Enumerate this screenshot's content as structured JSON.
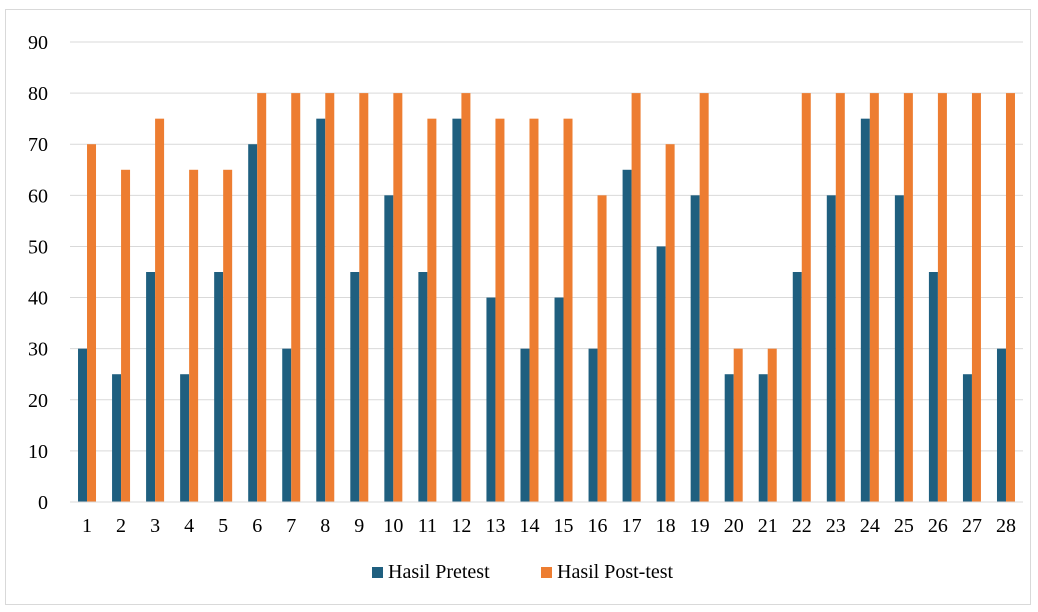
{
  "chart_data": {
    "type": "bar",
    "title": "",
    "xlabel": "",
    "ylabel": "",
    "ylim": [
      0,
      90
    ],
    "ytick_step": 10,
    "grid": true,
    "legend_position": "bottom",
    "categories": [
      "1",
      "2",
      "3",
      "4",
      "5",
      "6",
      "7",
      "8",
      "9",
      "10",
      "11",
      "12",
      "13",
      "14",
      "15",
      "16",
      "17",
      "18",
      "19",
      "20",
      "21",
      "22",
      "23",
      "24",
      "25",
      "26",
      "27",
      "28"
    ],
    "series": [
      {
        "name": "Hasil Pretest",
        "color": "#1f5f7f",
        "values": [
          30,
          25,
          45,
          25,
          45,
          70,
          30,
          75,
          45,
          60,
          45,
          75,
          40,
          30,
          40,
          30,
          65,
          50,
          60,
          25,
          25,
          45,
          60,
          75,
          60,
          45,
          25,
          30
        ]
      },
      {
        "name": "Hasil Post-test",
        "color": "#ed7d31",
        "values": [
          70,
          65,
          75,
          65,
          65,
          80,
          80,
          80,
          80,
          80,
          75,
          80,
          75,
          75,
          75,
          60,
          80,
          70,
          80,
          30,
          30,
          80,
          80,
          80,
          80,
          80,
          80,
          80
        ]
      }
    ]
  }
}
